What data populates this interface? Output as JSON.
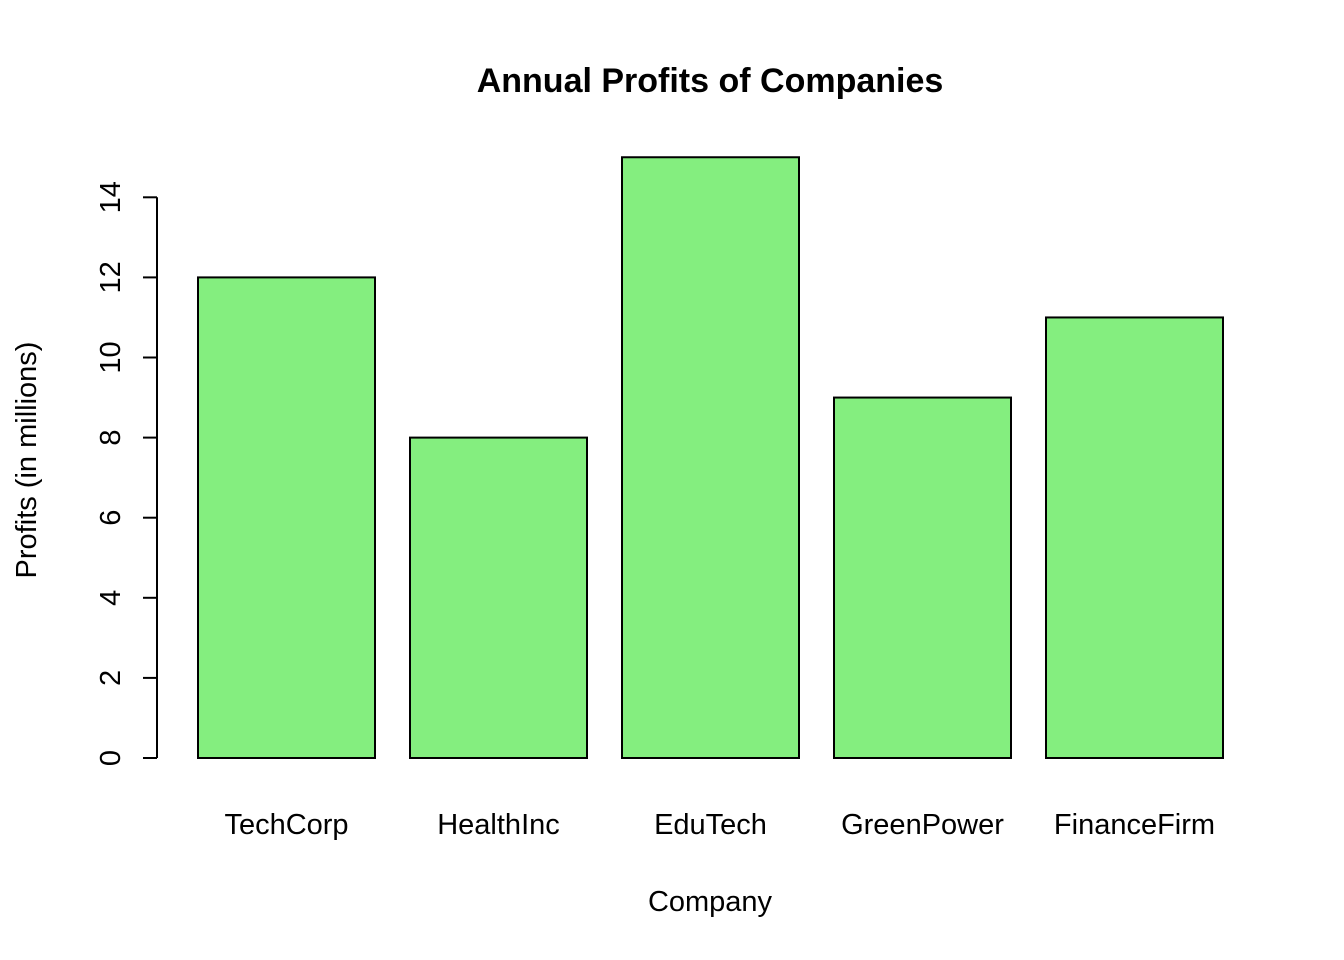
{
  "chart_data": {
    "type": "bar",
    "title": "Annual Profits of Companies",
    "xlabel": "Company",
    "ylabel": "Profits (in millions)",
    "categories": [
      "TechCorp",
      "HealthInc",
      "EduTech",
      "GreenPower",
      "FinanceFirm"
    ],
    "values": [
      12,
      8,
      15,
      9,
      11
    ],
    "ylim": [
      0,
      15
    ],
    "yticks": [
      0,
      2,
      4,
      6,
      8,
      10,
      12,
      14
    ],
    "ytick_labels": [
      "0",
      "2",
      "4",
      "6",
      "8",
      "10",
      "12",
      "14"
    ],
    "grid": false,
    "legend": "none",
    "bar_color": "#84ee7f",
    "bar_border_color": "#000000"
  }
}
